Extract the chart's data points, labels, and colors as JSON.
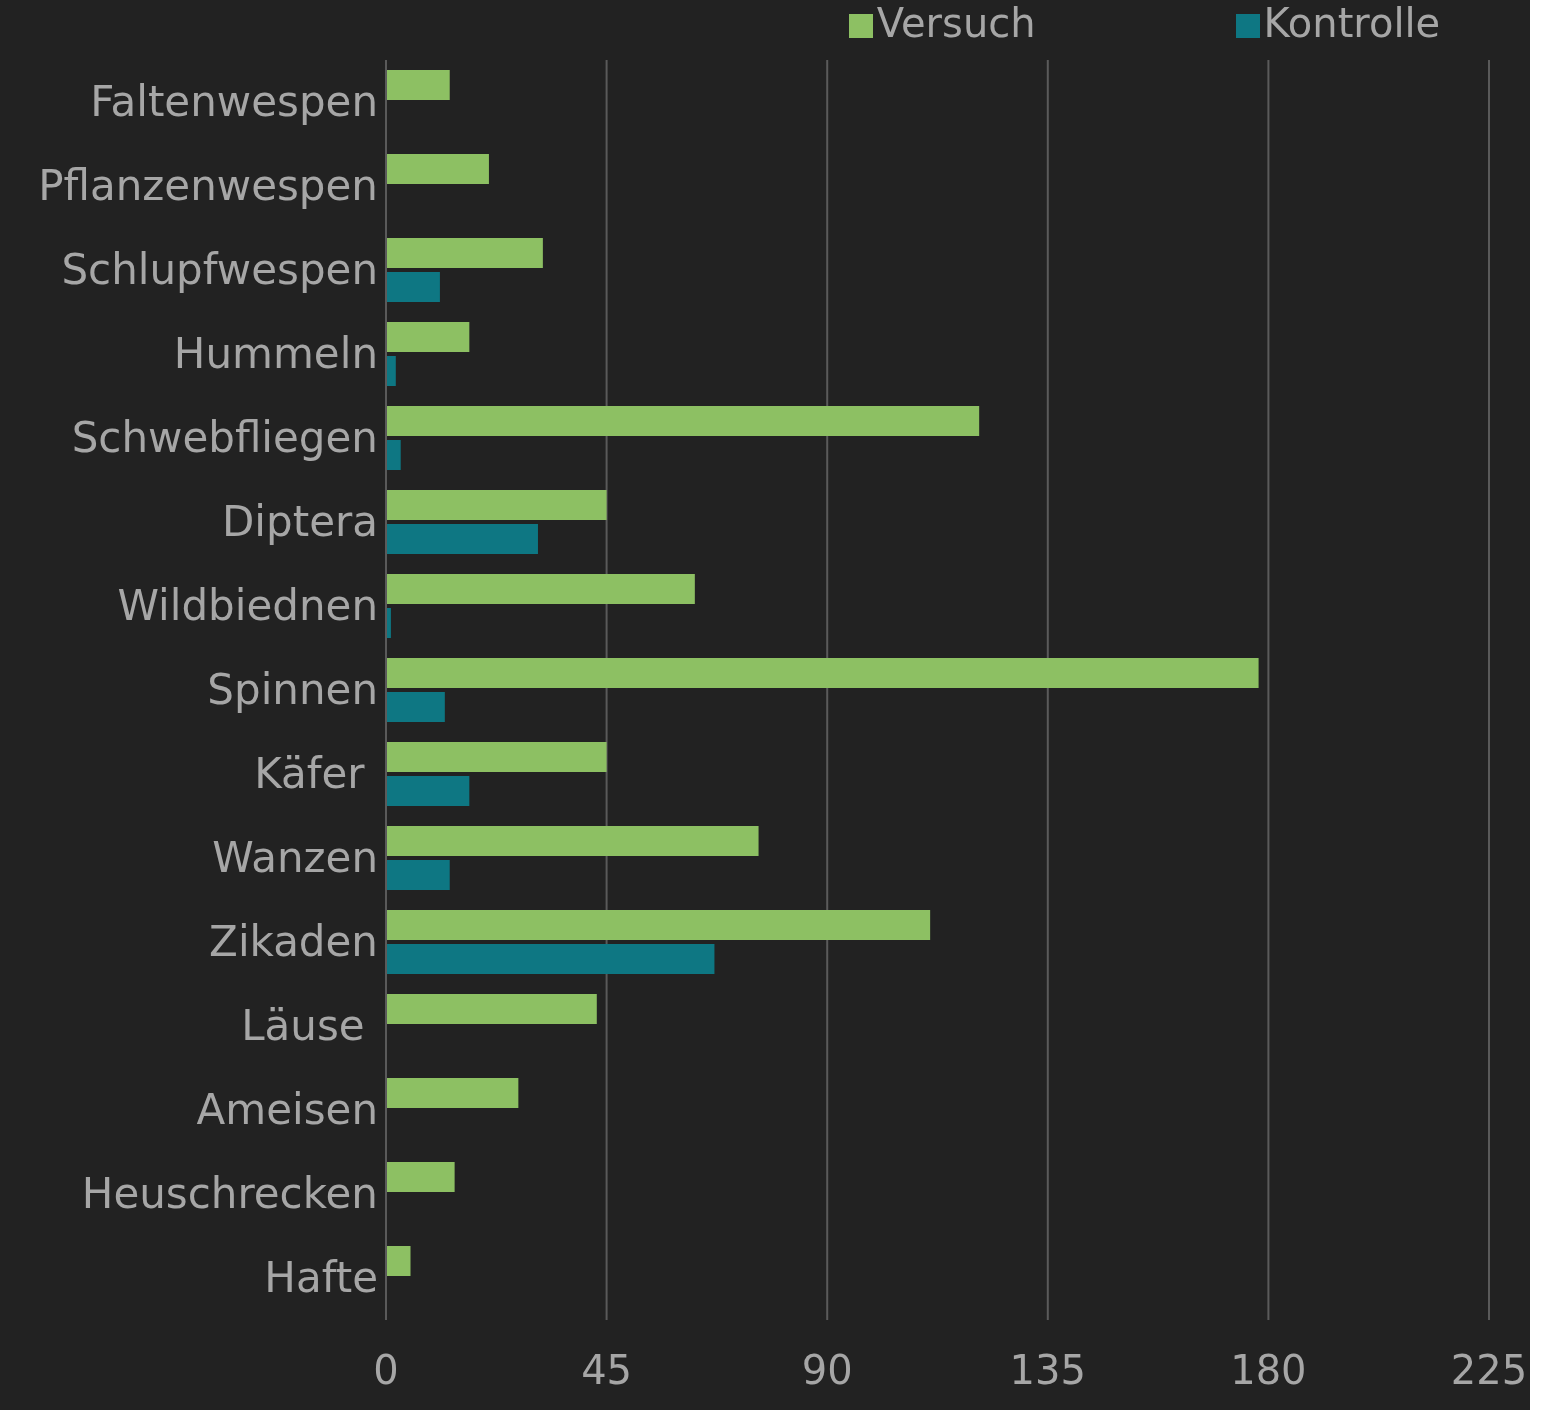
{
  "chart_data": {
    "type": "bar",
    "orientation": "horizontal",
    "categories": [
      "Faltenwespen",
      "Pflanzenwespen",
      "Schlupfwespen",
      "Hummeln",
      "Schwebfliegen",
      "Diptera",
      "Wildbiednen",
      "Spinnen",
      "Käfer ",
      "Wanzen",
      "Zikaden",
      "Läuse ",
      "Ameisen",
      "Heuschrecken",
      "Hafte"
    ],
    "series": [
      {
        "name": "Versuch",
        "color": "#8dc063",
        "values": [
          13,
          21,
          32,
          17,
          121,
          45,
          63,
          178,
          45,
          76,
          111,
          43,
          27,
          14,
          5
        ]
      },
      {
        "name": "Kontrolle",
        "color": "#0e7783",
        "values": [
          0,
          0,
          11,
          2,
          3,
          31,
          1,
          12,
          17,
          13,
          67,
          0,
          0,
          0,
          0
        ]
      }
    ],
    "xlim": [
      0,
      225
    ],
    "xticks": [
      0,
      45,
      90,
      135,
      180,
      225
    ],
    "grid": "x",
    "legend": "top"
  }
}
